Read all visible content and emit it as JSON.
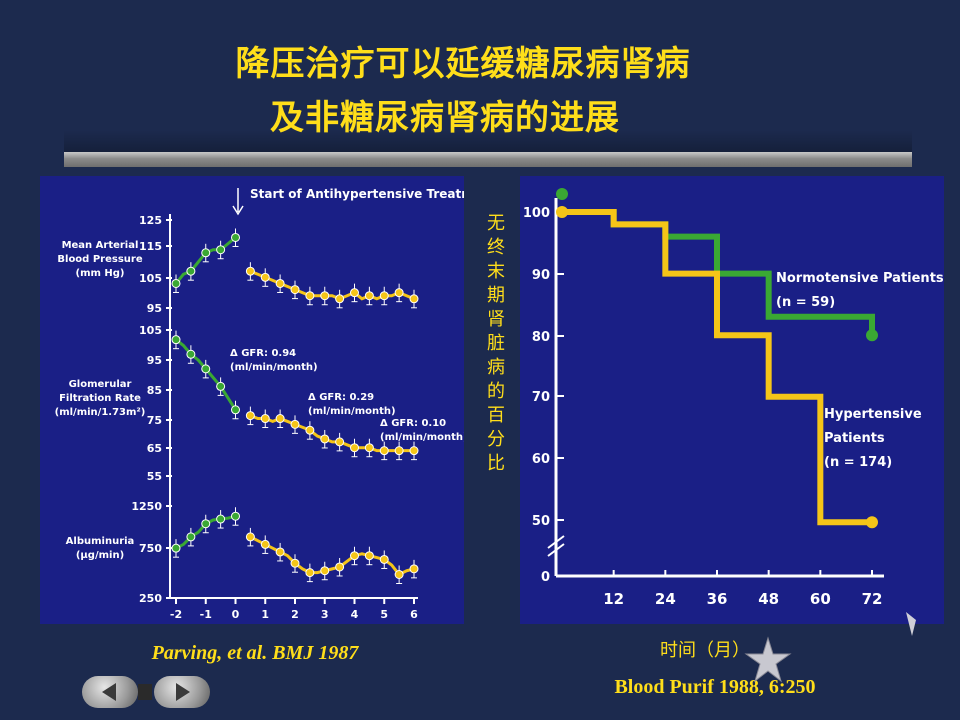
{
  "slide": {
    "title_line1": "降压治疗可以延缓糖尿病肾病",
    "title_line2": "及非糖尿病肾病的进展",
    "left_citation": "Parving, et al. BMJ 1987",
    "right_citation": "Blood Purif 1988, 6:250",
    "right_ylabel_chars": [
      "无",
      "终",
      "末",
      "期",
      "肾",
      "脏",
      "病",
      "的",
      "百",
      "分",
      "比"
    ],
    "right_xlabel": "时间（月）"
  },
  "colors": {
    "background": "#1c2a4e",
    "panel": "#1a1f86",
    "title": "#ffde1a",
    "green_series": "#3aa833",
    "yellow_series": "#f5c518",
    "axis": "#ffffff"
  },
  "chart_data": [
    {
      "type": "line",
      "annotation_top": "Start of Antihypertensive Treatment",
      "xlabel": "",
      "x_ticks": [
        "-2",
        "-1",
        "0",
        "1",
        "2",
        "3",
        "4",
        "5",
        "6"
      ],
      "panels": [
        {
          "ylabel_lines": [
            "Mean Arterial",
            "Blood Pressure",
            "(mm Hg)"
          ],
          "y_ticks": [
            "125",
            "115",
            "105",
            "95"
          ],
          "ylim": [
            95,
            125
          ],
          "pre": {
            "x": [
              -2,
              -1.75,
              -1.5,
              -1.25,
              -1,
              -0.75,
              -0.5,
              -0.25,
              0
            ],
            "y": [
              103,
              106,
              107,
              110,
              113,
              114,
              114,
              116,
              118
            ]
          },
          "post": {
            "x": [
              0.5,
              0.75,
              1,
              1.25,
              1.5,
              1.75,
              2,
              2.25,
              2.5,
              2.75,
              3,
              3.25,
              3.5,
              3.75,
              4,
              4.25,
              4.5,
              4.75,
              5,
              5.25,
              5.5,
              5.75,
              6
            ],
            "y": [
              107,
              106,
              105,
              104,
              103,
              102,
              101,
              100,
              99,
              99,
              99,
              99,
              98,
              99,
              100,
              98,
              99,
              98,
              99,
              99,
              100,
              99,
              98
            ]
          }
        },
        {
          "ylabel_lines": [
            "Glomerular",
            "Filtration Rate",
            "(ml/min/1.73m²)"
          ],
          "y_ticks": [
            "105",
            "95",
            "85",
            "75",
            "65",
            "55"
          ],
          "ylim": [
            55,
            105
          ],
          "annotations": [
            "Δ GFR: 0.94",
            "(ml/min/month)",
            "Δ GFR: 0.29",
            "(ml/min/month)",
            "Δ GFR: 0.10",
            "(ml/min/month)"
          ],
          "pre": {
            "x": [
              -2,
              -1.75,
              -1.5,
              -1.25,
              -1,
              -0.75,
              -0.5,
              -0.25,
              0
            ],
            "y": [
              101,
              99,
              96,
              94,
              91,
              88,
              85,
              81,
              77
            ]
          },
          "post": {
            "x": [
              0.5,
              0.75,
              1,
              1.25,
              1.5,
              1.75,
              2,
              2.25,
              2.5,
              2.75,
              3,
              3.25,
              3.5,
              3.75,
              4,
              4.25,
              4.5,
              4.75,
              5,
              5.25,
              5.5,
              5.75,
              6
            ],
            "y": [
              75,
              74,
              74,
              73,
              74,
              73,
              72,
              71,
              70,
              68,
              67,
              66,
              66,
              65,
              64,
              64,
              64,
              63,
              63,
              63,
              63,
              63,
              63
            ]
          }
        },
        {
          "ylabel_lines": [
            "Albuminuria",
            "(μg/min)"
          ],
          "y_ticks": [
            "1250",
            "750",
            "250"
          ],
          "ylim": [
            250,
            1250
          ],
          "pre": {
            "x": [
              -2,
              -1.75,
              -1.5,
              -1.25,
              -1,
              -0.75,
              -0.5,
              -0.25,
              0
            ],
            "y": [
              780,
              820,
              900,
              950,
              1040,
              1080,
              1090,
              1100,
              1120
            ]
          },
          "post": {
            "x": [
              0.5,
              0.75,
              1,
              1.25,
              1.5,
              1.75,
              2,
              2.25,
              2.5,
              2.75,
              3,
              3.25,
              3.5,
              3.75,
              4,
              4.25,
              4.5,
              4.75,
              5,
              5.25,
              5.5,
              5.75,
              6
            ],
            "y": [
              900,
              860,
              820,
              780,
              740,
              700,
              620,
              560,
              520,
              520,
              540,
              560,
              580,
              640,
              700,
              720,
              700,
              680,
              660,
              600,
              500,
              540,
              560
            ]
          }
        }
      ]
    },
    {
      "type": "line",
      "xlabel": "时间（月）",
      "ylabel": "无终末期肾脏病的百分比",
      "x_ticks": [
        "12",
        "24",
        "36",
        "48",
        "60",
        "72"
      ],
      "y_ticks": [
        "100",
        "90",
        "80",
        "70",
        "60",
        "50",
        "0"
      ],
      "ylim": [
        0,
        100
      ],
      "series": [
        {
          "name": "Normotensive Patients (n = 59)",
          "x": [
            0,
            12,
            24,
            36,
            48,
            72
          ],
          "y": [
            100,
            98,
            96,
            90,
            83,
            80
          ]
        },
        {
          "name": "Hypertensive Patients (n = 174)",
          "x": [
            0,
            12,
            24,
            36,
            48,
            60,
            72
          ],
          "y": [
            100,
            98,
            90,
            80,
            70,
            48,
            48
          ]
        }
      ]
    }
  ]
}
